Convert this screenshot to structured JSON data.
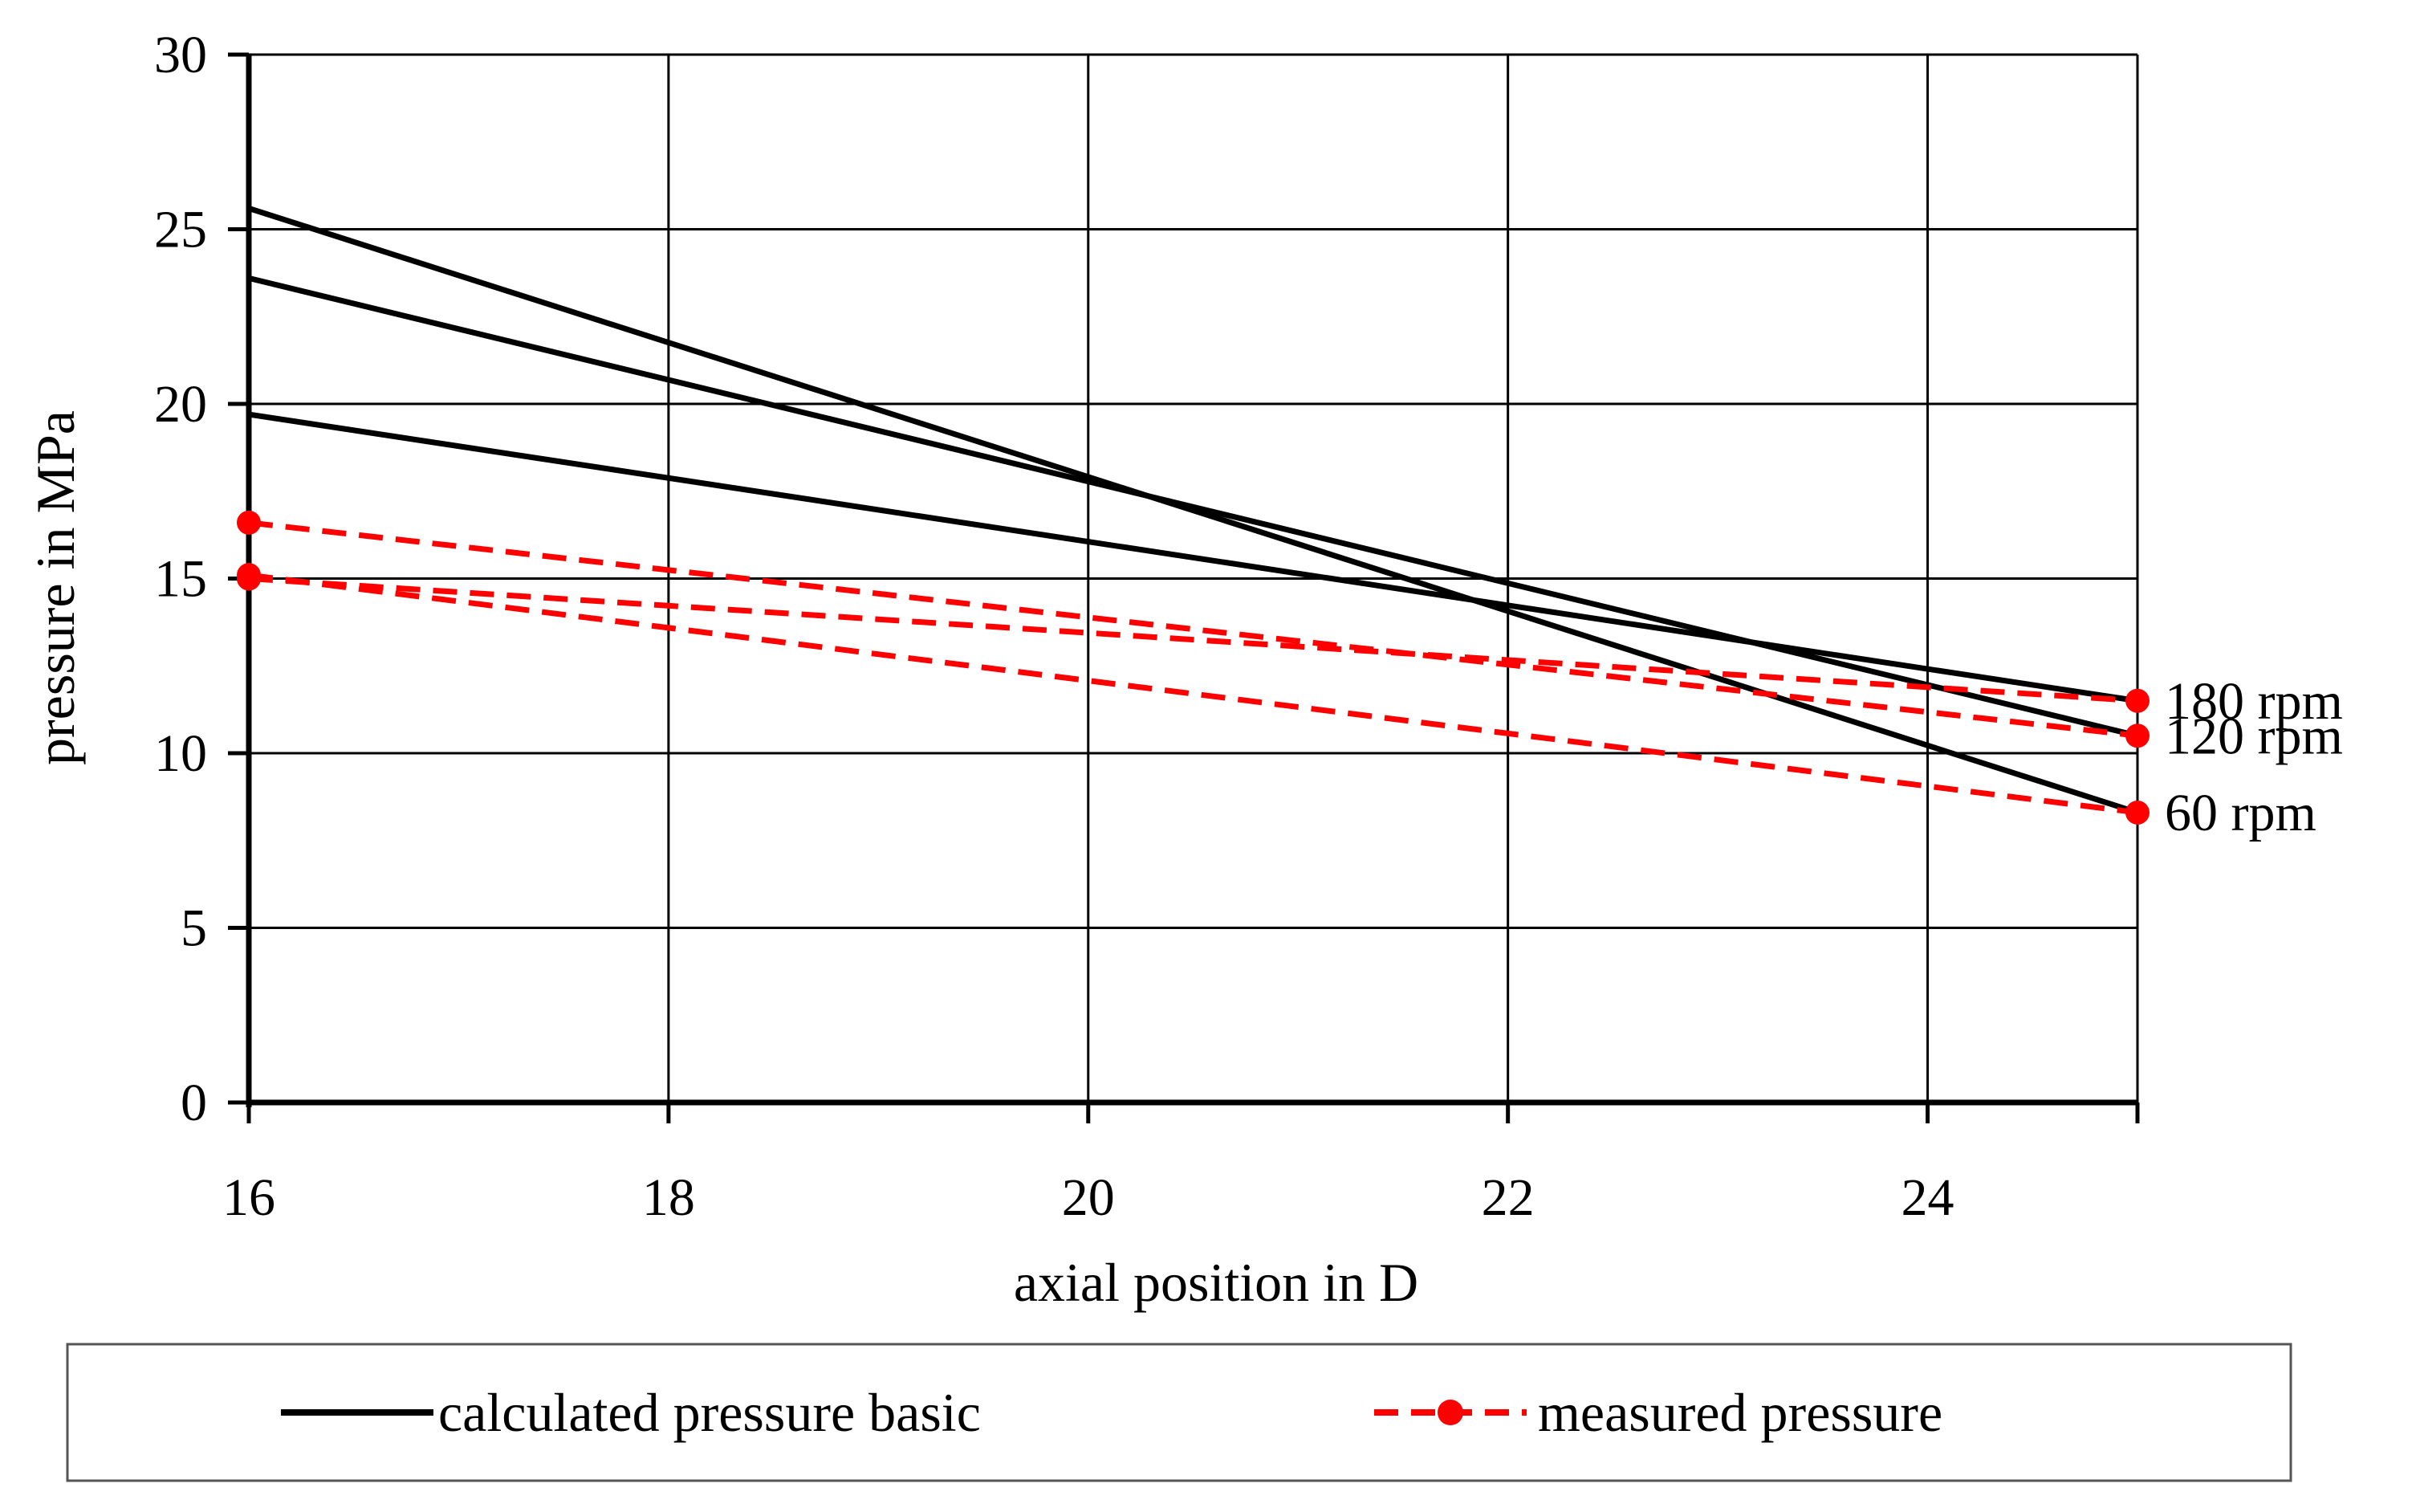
{
  "chart_data": {
    "type": "line",
    "title": "",
    "xlabel": "axial position in D",
    "ylabel": "pressure in MPa",
    "xlim": [
      16,
      25
    ],
    "ylim": [
      0,
      30
    ],
    "xticks": [
      16,
      18,
      20,
      22,
      24
    ],
    "yticks": [
      0,
      5,
      10,
      15,
      20,
      25,
      30
    ],
    "grid": true,
    "legend_position": "bottom",
    "legend": [
      {
        "label": "calculated pressure basic",
        "style": "solid",
        "color": "#000000"
      },
      {
        "label": "measured pressure",
        "style": "dashed-marker",
        "color": "#ff0000"
      }
    ],
    "series": [
      {
        "name": "calculated pressure basic",
        "group": "calculated",
        "speed": "60 rpm",
        "x": [
          16,
          25
        ],
        "y": [
          25.6,
          8.3
        ]
      },
      {
        "name": "calculated pressure basic",
        "group": "calculated",
        "speed": "120 rpm",
        "x": [
          16,
          25
        ],
        "y": [
          23.6,
          10.5
        ]
      },
      {
        "name": "calculated pressure basic",
        "group": "calculated",
        "speed": "180 rpm",
        "x": [
          16,
          25
        ],
        "y": [
          19.7,
          11.5
        ]
      },
      {
        "name": "measured pressure",
        "group": "measured",
        "speed": "60 rpm",
        "x": [
          16,
          25
        ],
        "y": [
          15.1,
          8.3
        ]
      },
      {
        "name": "measured pressure",
        "group": "measured",
        "speed": "120 rpm",
        "x": [
          16,
          25
        ],
        "y": [
          16.6,
          10.5
        ]
      },
      {
        "name": "measured pressure",
        "group": "measured",
        "speed": "180 rpm",
        "x": [
          16,
          25
        ],
        "y": [
          15.0,
          11.5
        ]
      }
    ],
    "annotations": [
      {
        "text": "180 rpm",
        "x": 25,
        "y": 11.5
      },
      {
        "text": "120 rpm",
        "x": 25,
        "y": 10.5
      },
      {
        "text": "60 rpm",
        "x": 25,
        "y": 8.3
      }
    ]
  }
}
